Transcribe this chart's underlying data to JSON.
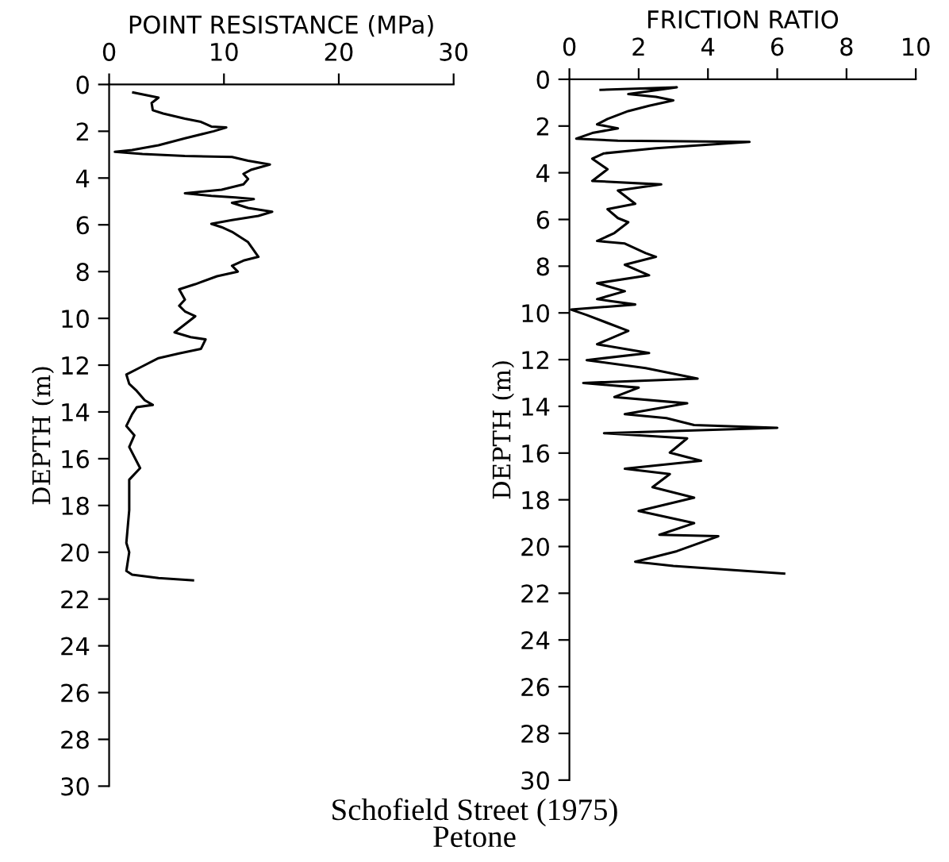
{
  "chart_data": [
    {
      "type": "line",
      "xlabel": "POINT RESISTANCE (MPa)",
      "ylabel": "DEPTH (m)",
      "xlim": [
        0,
        30
      ],
      "xticks": [
        0,
        10,
        20,
        30
      ],
      "ylim": [
        30,
        0
      ],
      "yticks": [
        0,
        2,
        4,
        6,
        8,
        10,
        12,
        14,
        16,
        18,
        20,
        22,
        24,
        26,
        28,
        30
      ],
      "annotations": [
        "Schofield Street (1975)\nPetone"
      ],
      "series": [
        {
          "color": "#000000",
          "x": [
            2.1,
            4.3,
            3.7,
            3.8,
            4.7,
            6.6,
            8.0,
            8.9,
            10.2,
            9.1,
            6.6,
            4.3,
            2.0,
            0.5,
            2.9,
            6.6,
            10.7,
            12.1,
            14.0,
            12.4,
            11.7,
            12.1,
            11.7,
            9.8,
            6.6,
            8.9,
            11.0,
            12.6,
            10.7,
            12.1,
            14.2,
            13.0,
            10.7,
            8.9,
            9.8,
            10.7,
            12.1,
            13.0,
            11.7,
            10.7,
            11.2,
            9.4,
            7.5,
            6.1,
            6.6,
            6.1,
            6.6,
            7.5,
            5.7,
            7.1,
            8.4,
            8.0,
            6.1,
            4.3,
            2.9,
            1.5,
            1.75,
            2.4,
            3.1,
            3.8,
            2.4,
            2.0,
            1.5,
            2.2,
            1.75,
            2.7,
            1.75,
            1.75,
            1.5,
            1.75,
            1.5,
            2.0,
            4.3,
            7.3
          ],
          "values": [
            0.34,
            0.56,
            0.79,
            1.1,
            1.24,
            1.46,
            1.6,
            1.8,
            1.84,
            2.0,
            2.3,
            2.6,
            2.8,
            2.88,
            2.97,
            3.06,
            3.1,
            3.26,
            3.42,
            3.64,
            3.82,
            4.04,
            4.27,
            4.5,
            4.65,
            4.76,
            4.83,
            4.9,
            5.06,
            5.28,
            5.44,
            5.62,
            5.8,
            5.96,
            6.1,
            6.3,
            6.74,
            7.37,
            7.53,
            7.75,
            8.0,
            8.2,
            8.54,
            8.76,
            9.2,
            9.46,
            9.7,
            9.91,
            10.6,
            10.8,
            10.9,
            11.3,
            11.5,
            11.7,
            12.05,
            12.4,
            12.8,
            13.1,
            13.5,
            13.7,
            13.8,
            14.1,
            14.6,
            15.0,
            15.5,
            16.4,
            16.9,
            18.2,
            19.6,
            20.0,
            20.8,
            20.96,
            21.1,
            21.2
          ]
        }
      ]
    },
    {
      "type": "line",
      "xlabel": "FRICTION RATIO",
      "ylabel": "DEPTH (m)",
      "xlim": [
        0,
        10
      ],
      "xticks": [
        0,
        2,
        4,
        6,
        8,
        10
      ],
      "ylim": [
        30,
        0
      ],
      "yticks": [
        0,
        2,
        4,
        6,
        8,
        10,
        12,
        14,
        16,
        18,
        20,
        22,
        24,
        26,
        28,
        30
      ],
      "series": [
        {
          "color": "#000000",
          "x": [
            0.9,
            3.1,
            1.7,
            2.5,
            3.0,
            2.3,
            1.7,
            1.1,
            0.8,
            1.4,
            0.66,
            0.2,
            1.4,
            5.2,
            2.5,
            1.0,
            0.66,
            1.1,
            0.66,
            2.65,
            1.4,
            1.9,
            1.1,
            1.4,
            1.7,
            1.3,
            0.8,
            1.6,
            2.2,
            2.5,
            1.6,
            2.3,
            0.8,
            1.6,
            0.8,
            1.9,
            0.05,
            0.5,
            1.7,
            0.8,
            2.3,
            0.5,
            2.2,
            3.7,
            0.4,
            2.0,
            1.3,
            3.4,
            1.6,
            2.8,
            3.6,
            6.0,
            1.0,
            3.4,
            2.9,
            3.8,
            1.6,
            2.9,
            2.4,
            3.6,
            2.0,
            3.6,
            2.6,
            4.3,
            3.1,
            1.9,
            3.0,
            6.2
          ],
          "values": [
            0.45,
            0.34,
            0.63,
            0.75,
            0.9,
            1.13,
            1.36,
            1.7,
            1.93,
            2.1,
            2.3,
            2.54,
            2.63,
            2.68,
            2.95,
            3.17,
            3.4,
            3.85,
            4.35,
            4.5,
            4.76,
            5.33,
            5.56,
            5.94,
            6.12,
            6.58,
            6.92,
            7.03,
            7.44,
            7.6,
            7.94,
            8.39,
            8.73,
            9.07,
            9.41,
            9.64,
            9.86,
            10.09,
            10.77,
            11.34,
            11.72,
            12.02,
            12.36,
            12.81,
            13.0,
            13.2,
            13.6,
            13.87,
            14.33,
            14.5,
            14.8,
            14.92,
            15.15,
            15.37,
            15.98,
            16.33,
            16.67,
            16.9,
            17.46,
            17.91,
            18.48,
            19.0,
            19.5,
            19.56,
            20.2,
            20.65,
            20.83,
            21.16
          ]
        }
      ]
    }
  ]
}
